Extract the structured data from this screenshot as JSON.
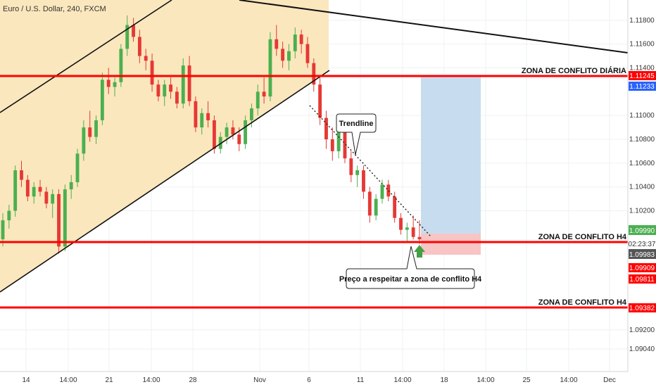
{
  "symbol_title": "Euro / U.S. Dollar, 240, FXCM",
  "colors": {
    "background": "#ffffff",
    "grid": "#eef0f3",
    "bull": "#4caf50",
    "bear": "#e53935",
    "zone": "#ff0000",
    "channel_fill": "#fbe7bd",
    "target_fill": "#c8dcef",
    "stop_fill": "#f9c4c4",
    "arrow": "#43a047",
    "trendline": "#111111"
  },
  "chart_data": {
    "type": "candlestick",
    "title": "Euro / U.S. Dollar, 240, FXCM",
    "x_ticks": [
      "14",
      "14:00",
      "21",
      "14:00",
      "28",
      "Nov",
      "6",
      "11",
      "14:00",
      "18",
      "14:00",
      "25",
      "14:00",
      "Dec"
    ],
    "y_ticks": [
      "1.11800",
      "1.11600",
      "1.11400",
      "1.11000",
      "1.10800",
      "1.10600",
      "1.10400",
      "1.10200",
      "1.09200",
      "1.09040"
    ],
    "ylim": [
      1.0885,
      1.1197
    ],
    "grid": true,
    "candles_approx": [
      [
        1.0996,
        1.1018,
        1.099,
        1.1012
      ],
      [
        1.1012,
        1.1025,
        1.1005,
        1.102
      ],
      [
        1.102,
        1.1058,
        1.1015,
        1.1054
      ],
      [
        1.1054,
        1.1062,
        1.104,
        1.1046
      ],
      [
        1.1046,
        1.105,
        1.1028,
        1.1032
      ],
      [
        1.1032,
        1.1044,
        1.1026,
        1.104
      ],
      [
        1.104,
        1.1046,
        1.1032,
        1.1036
      ],
      [
        1.1036,
        1.104,
        1.1022,
        1.1026
      ],
      [
        1.1026,
        1.1038,
        1.1014,
        1.1034
      ],
      [
        1.1034,
        1.1038,
        1.0984,
        1.099
      ],
      [
        1.099,
        1.1042,
        1.0986,
        1.1038
      ],
      [
        1.1038,
        1.105,
        1.103,
        1.1044
      ],
      [
        1.1044,
        1.1072,
        1.104,
        1.1068
      ],
      [
        1.1068,
        1.1096,
        1.1062,
        1.109
      ],
      [
        1.109,
        1.1104,
        1.1078,
        1.1082
      ],
      [
        1.1082,
        1.11,
        1.1076,
        1.1096
      ],
      [
        1.1096,
        1.1136,
        1.1092,
        1.113
      ],
      [
        1.113,
        1.114,
        1.1118,
        1.1124
      ],
      [
        1.1124,
        1.1132,
        1.1116,
        1.1128
      ],
      [
        1.1128,
        1.116,
        1.1124,
        1.1156
      ],
      [
        1.1156,
        1.1184,
        1.115,
        1.1176
      ],
      [
        1.1176,
        1.1182,
        1.1162,
        1.1166
      ],
      [
        1.1166,
        1.1172,
        1.1144,
        1.115
      ],
      [
        1.115,
        1.1156,
        1.1138,
        1.1146
      ],
      [
        1.1146,
        1.1152,
        1.112,
        1.1126
      ],
      [
        1.1126,
        1.113,
        1.1112,
        1.1116
      ],
      [
        1.1116,
        1.113,
        1.1108,
        1.1126
      ],
      [
        1.1126,
        1.1132,
        1.1114,
        1.112
      ],
      [
        1.112,
        1.1124,
        1.1106,
        1.111
      ],
      [
        1.111,
        1.1148,
        1.1106,
        1.1142
      ],
      [
        1.1142,
        1.115,
        1.1108,
        1.1112
      ],
      [
        1.1112,
        1.1116,
        1.1086,
        1.109
      ],
      [
        1.109,
        1.1106,
        1.1084,
        1.1102
      ],
      [
        1.1102,
        1.1112,
        1.109,
        1.1096
      ],
      [
        1.1096,
        1.11,
        1.1068,
        1.1072
      ],
      [
        1.1072,
        1.1086,
        1.1068,
        1.1082
      ],
      [
        1.1082,
        1.1094,
        1.1076,
        1.109
      ],
      [
        1.109,
        1.1096,
        1.108,
        1.1084
      ],
      [
        1.1084,
        1.109,
        1.107,
        1.1076
      ],
      [
        1.1076,
        1.11,
        1.1072,
        1.1096
      ],
      [
        1.1096,
        1.111,
        1.109,
        1.1106
      ],
      [
        1.1106,
        1.1126,
        1.11,
        1.112
      ],
      [
        1.112,
        1.1132,
        1.111,
        1.1116
      ],
      [
        1.1116,
        1.117,
        1.1112,
        1.1164
      ],
      [
        1.1164,
        1.1176,
        1.115,
        1.1156
      ],
      [
        1.1156,
        1.1162,
        1.114,
        1.1146
      ],
      [
        1.1146,
        1.116,
        1.1138,
        1.1154
      ],
      [
        1.1154,
        1.1174,
        1.1148,
        1.1168
      ],
      [
        1.1168,
        1.1172,
        1.1152,
        1.116
      ],
      [
        1.116,
        1.1166,
        1.114,
        1.1144
      ],
      [
        1.1144,
        1.1148,
        1.112,
        1.1126
      ],
      [
        1.1126,
        1.1132,
        1.1092,
        1.1098
      ],
      [
        1.1098,
        1.1104,
        1.1072,
        1.108
      ],
      [
        1.108,
        1.109,
        1.1062,
        1.107
      ],
      [
        1.107,
        1.1092,
        1.1064,
        1.1086
      ],
      [
        1.1086,
        1.109,
        1.106,
        1.1064
      ],
      [
        1.1064,
        1.107,
        1.1044,
        1.105
      ],
      [
        1.105,
        1.1058,
        1.104,
        1.1054
      ],
      [
        1.1054,
        1.1058,
        1.103,
        1.1036
      ],
      [
        1.1036,
        1.104,
        1.101,
        1.1016
      ],
      [
        1.1016,
        1.1034,
        1.1012,
        1.103
      ],
      [
        1.103,
        1.1046,
        1.1026,
        1.1042
      ],
      [
        1.1042,
        1.1046,
        1.1028,
        1.1032
      ],
      [
        1.1032,
        1.1036,
        1.101,
        1.1014
      ],
      [
        1.1014,
        1.1018,
        1.1,
        1.1004
      ],
      [
        1.1004,
        1.101,
        1.0994,
        1.1006
      ],
      [
        1.1006,
        1.1016,
        1.0996,
        1.0998
      ],
      [
        1.0998,
        1.1012,
        1.0992,
        1.0996
      ]
    ],
    "horizontal_zones": [
      {
        "price": 1.11245,
        "label": "ZONA DE CONFLITO DIÁRIA"
      },
      {
        "price": 1.0991,
        "label": "ZONA DE CONFLITO H4"
      },
      {
        "price": 1.09382,
        "label": "ZONA DE CONFLITO H4"
      }
    ],
    "annotations": [
      "Trendline",
      "Preço a respeitar a zona de conflito H4"
    ]
  },
  "zone_labels": {
    "daily": "ZONA DE CONFLITO DIÁRIA",
    "h4_upper": "ZONA DE CONFLITO H4",
    "h4_lower": "ZONA DE CONFLITO H4"
  },
  "price_tags": {
    "daily_zone": "1.11245",
    "level_1": "1.11233",
    "current": "1.09990",
    "countdown": "02:23:37",
    "level_2": "1.09983",
    "level_3": "1.09909",
    "level_4": "1.09811",
    "lower_zone": "1.09382"
  },
  "callouts": {
    "trendline": "Trendline",
    "respect": "Preço a respeitar a zona de conflito H4"
  }
}
